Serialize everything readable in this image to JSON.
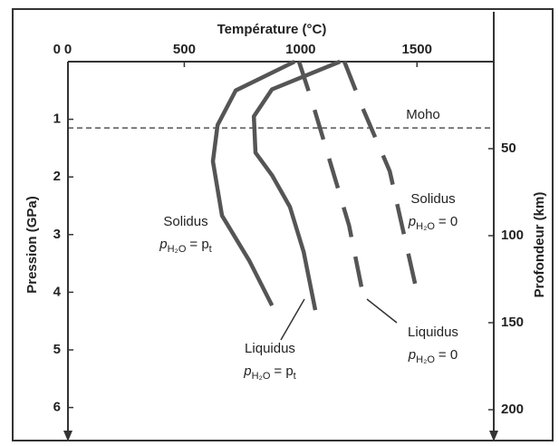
{
  "chart_data": {
    "type": "line",
    "xlabel": "Température (°C)",
    "ylabel": "Pression (GPa)",
    "y2label": "Profondeur (km)",
    "xlim": [
      0,
      1830
    ],
    "xticks": [
      0,
      500,
      1000,
      1500
    ],
    "ylim": [
      0,
      6.4
    ],
    "yticks": [
      0,
      1,
      2,
      3,
      4,
      5,
      6
    ],
    "y_inverted": true,
    "y2lim": [
      0,
      212
    ],
    "y2ticks": [
      50,
      100,
      150,
      200
    ],
    "moho": {
      "text": "Moho",
      "y": 1.15
    },
    "series": [
      {
        "name": "Solidus",
        "condition": {
          "lhs": "p",
          "lhs_sub": "H₂O",
          "rhs": "= p",
          "rhs_sub": "t"
        },
        "color": "#555555",
        "dashed": false,
        "x": [
          974,
          721,
          643,
          623,
          662,
          779,
          877
        ],
        "values": [
          0,
          0.5,
          1.1,
          1.73,
          2.67,
          3.45,
          4.23
        ]
      },
      {
        "name": "Liquidus",
        "condition": {
          "lhs": "p",
          "lhs_sub": "H₂O",
          "rhs": "= p",
          "rhs_sub": "t"
        },
        "color": "#555555",
        "dashed": false,
        "x": [
          1169,
          877,
          799,
          806,
          877,
          954,
          1013,
          1063
        ],
        "values": [
          0,
          0.48,
          0.95,
          1.58,
          1.97,
          2.52,
          3.3,
          4.31
        ]
      },
      {
        "name": "Solidus",
        "condition": {
          "lhs": "p",
          "lhs_sub": "H₂O",
          "rhs": "= 0"
        },
        "color": "#555555",
        "dashed": true,
        "x": [
          993,
          1052,
          1208,
          1266
        ],
        "values": [
          0,
          0.73,
          2.84,
          4.0
        ]
      },
      {
        "name": "Liquidus",
        "condition": {
          "lhs": "p",
          "lhs_sub": "H₂O",
          "rhs": "= 0"
        },
        "color": "#555555",
        "dashed": true,
        "x": [
          1188,
          1266,
          1383,
          1500
        ],
        "values": [
          0,
          0.8,
          1.9,
          4.0
        ]
      }
    ]
  }
}
